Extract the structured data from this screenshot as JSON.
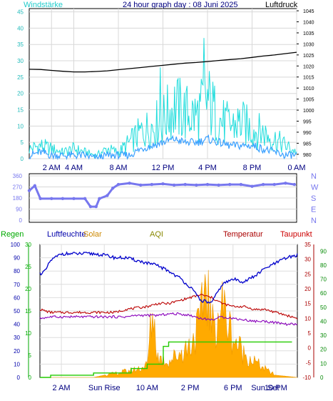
{
  "header": {
    "left_label": "Windstärke",
    "title": "24 hour graph day : 08 Juni 2025",
    "right_label": "Luftdruck"
  },
  "colors": {
    "wind": "#22dddd",
    "wind_avg": "#3aa0ff",
    "pressure": "#000000",
    "direction": "#7777ee",
    "humidity": "#0000cc",
    "temperature": "#bb0000",
    "dewpoint": "#8800bb",
    "rain": "#22cc00",
    "solar_fill": "#ffaa00",
    "regen_label": "#00aa00",
    "luftfeuchte_label": "#0000aa",
    "solar_label": "#cc8800",
    "aqi_label": "#888800",
    "temperatur_label": "#aa0000",
    "taupunkt_label": "#cc0000"
  },
  "chart_data": [
    {
      "type": "line",
      "name": "wind_pressure",
      "x_ticks": [
        "2 AM",
        "4 AM",
        "8 AM",
        "12 PM",
        "4 PM",
        "8 PM",
        "0 AM"
      ],
      "y_left_ticks": [
        "0",
        "5",
        "10",
        "15",
        "20",
        "25",
        "30",
        "35",
        "40",
        "45"
      ],
      "y_right_ticks": [
        "980",
        "985",
        "990",
        "995",
        "1000",
        "1005",
        "1010",
        "1015",
        "1020",
        "1025",
        "1030",
        "1035",
        "1040",
        "1045"
      ],
      "ylim_left": [
        0,
        46
      ],
      "ylim_right": [
        978,
        1046
      ],
      "xlim": [
        0,
        24
      ],
      "grid": true,
      "series": [
        {
          "role": "pressure",
          "axis": "right",
          "x": [
            0,
            1,
            2,
            3,
            4,
            5,
            6,
            7,
            8,
            9,
            10,
            11,
            12,
            13,
            14,
            15,
            16,
            17,
            18,
            19,
            20,
            21,
            22,
            23,
            24
          ],
          "values": [
            1018.5,
            1018.4,
            1018.0,
            1017.6,
            1017.3,
            1017.3,
            1017.5,
            1017.8,
            1018.3,
            1018.8,
            1019.3,
            1019.8,
            1020.3,
            1020.8,
            1021.3,
            1021.6,
            1022.0,
            1022.5,
            1022.9,
            1023.3,
            1023.9,
            1024.5,
            1025.0,
            1025.6,
            1026.2
          ]
        },
        {
          "role": "gust",
          "axis": "left",
          "x": [
            0,
            1,
            2,
            3,
            4,
            5,
            6,
            7,
            8,
            9,
            10,
            11,
            12,
            13,
            14,
            15,
            16,
            17,
            18,
            19,
            20,
            21,
            22,
            23,
            24
          ],
          "values": [
            3,
            4,
            3,
            2,
            3,
            2,
            1,
            3,
            2,
            5,
            8,
            10,
            12,
            16,
            14,
            13,
            18,
            12,
            10,
            11,
            9,
            8,
            6,
            4,
            2
          ]
        },
        {
          "role": "average",
          "axis": "left",
          "x": [
            0,
            1,
            2,
            3,
            4,
            5,
            6,
            7,
            8,
            9,
            10,
            11,
            12,
            13,
            14,
            15,
            16,
            17,
            18,
            19,
            20,
            21,
            22,
            23,
            24
          ],
          "values": [
            1,
            2,
            1,
            1,
            1,
            1,
            0,
            1,
            1,
            1,
            3,
            4,
            5,
            6,
            5,
            5,
            6,
            5,
            4,
            4,
            4,
            3,
            2,
            1,
            1
          ]
        }
      ]
    },
    {
      "type": "scatter",
      "name": "wind_direction",
      "y_left_ticks": [
        "0",
        "90",
        "180",
        "270",
        "360"
      ],
      "y_right_ticks": [
        "N",
        "E",
        "S",
        "W",
        "N"
      ],
      "ylim": [
        0,
        360
      ],
      "xlim": [
        0,
        24
      ],
      "series": [
        {
          "role": "direction",
          "x": [
            0,
            0.5,
            1,
            2,
            3,
            4,
            5,
            5.5,
            6,
            6.3,
            7,
            7.5,
            8,
            9,
            10,
            11,
            12,
            13,
            14,
            15,
            16,
            17,
            18,
            19,
            20,
            21,
            22,
            23,
            23.8
          ],
          "values": [
            240,
            280,
            175,
            175,
            175,
            175,
            175,
            110,
            110,
            175,
            200,
            260,
            290,
            300,
            285,
            290,
            295,
            285,
            290,
            285,
            290,
            285,
            290,
            290,
            275,
            290,
            290,
            300,
            290
          ]
        }
      ]
    },
    {
      "type": "area",
      "name": "climate",
      "legend": [
        "Regen",
        "Luftfeuchte",
        "Solar",
        "AQI",
        "Temperatur",
        "Taupunkt"
      ],
      "x_ticks": [
        "2 AM",
        "Sun Rise",
        "10 AM",
        "2 PM",
        "6 PM",
        "Sun Set",
        "10 PM"
      ],
      "y_left_ticks": [
        "0",
        "10",
        "20",
        "30",
        "40",
        "50",
        "60",
        "70",
        "80",
        "90",
        "100"
      ],
      "y_mid_ticks": [
        "0",
        "5",
        "10",
        "15",
        "20",
        "25",
        "30"
      ],
      "y_right1_ticks": [
        "-10",
        "-5",
        "0",
        "5",
        "10",
        "15",
        "20",
        "25",
        "30",
        "35"
      ],
      "y_right2_ticks": [
        "0",
        "10",
        "20",
        "30",
        "40",
        "50",
        "60",
        "70",
        "80",
        "90"
      ],
      "xlim": [
        0,
        24
      ],
      "ylim_humidity": [
        0,
        100
      ],
      "ylim_temp": [
        -10,
        35
      ],
      "series": [
        {
          "role": "humidity",
          "x": [
            0,
            0.5,
            1,
            2,
            3,
            4,
            5,
            6,
            7,
            8,
            9,
            10,
            11,
            12,
            13,
            14,
            15,
            16,
            17,
            18,
            19,
            20,
            21,
            22,
            23,
            24
          ],
          "values": [
            78,
            80,
            88,
            93,
            93,
            93,
            93,
            92,
            90,
            90,
            88,
            86,
            84,
            80,
            75,
            68,
            58,
            56,
            70,
            74,
            72,
            76,
            82,
            86,
            90,
            92
          ]
        },
        {
          "role": "temperature",
          "x": [
            0,
            1,
            2,
            3,
            4,
            5,
            6,
            7,
            8,
            9,
            10,
            11,
            12,
            13,
            14,
            15,
            16,
            17,
            18,
            19,
            20,
            21,
            22,
            23,
            24
          ],
          "values": [
            13,
            12,
            12,
            12,
            12,
            12,
            12,
            12,
            13,
            13.5,
            14,
            15,
            15,
            16,
            17,
            18,
            17,
            15,
            14,
            14,
            13,
            13,
            12,
            11,
            10
          ]
        },
        {
          "role": "dewpoint",
          "x": [
            0,
            1,
            2,
            3,
            4,
            5,
            6,
            7,
            8,
            9,
            10,
            11,
            12,
            13,
            14,
            15,
            16,
            17,
            18,
            19,
            20,
            21,
            22,
            23,
            24
          ],
          "values": [
            10,
            10.5,
            10.5,
            10.5,
            10.5,
            10.5,
            10.5,
            10.5,
            10.5,
            11,
            11,
            11,
            11.5,
            11.5,
            11,
            10,
            9.5,
            10.5,
            10,
            9.5,
            9,
            9,
            8.5,
            8,
            8
          ]
        },
        {
          "role": "rain",
          "x": [
            0,
            0.5,
            1,
            4,
            5,
            8,
            8.5,
            9,
            10,
            11,
            11.5,
            12,
            16,
            17,
            23.5
          ],
          "values": [
            0,
            0,
            0.5,
            0.5,
            1,
            1,
            2,
            2,
            3,
            3,
            7,
            8,
            8,
            8,
            8
          ]
        },
        {
          "role": "solar",
          "x": [
            0,
            5,
            6,
            7,
            8,
            9,
            10,
            10.5,
            11,
            12,
            13,
            14,
            15,
            15.5,
            16,
            17,
            18,
            19,
            20,
            21,
            22,
            24
          ],
          "values": [
            0,
            0,
            0.5,
            1,
            1.5,
            2,
            3,
            17,
            5,
            4,
            6,
            8,
            14,
            26,
            12,
            18,
            10,
            6,
            4,
            2,
            0.5,
            0
          ]
        }
      ]
    }
  ]
}
